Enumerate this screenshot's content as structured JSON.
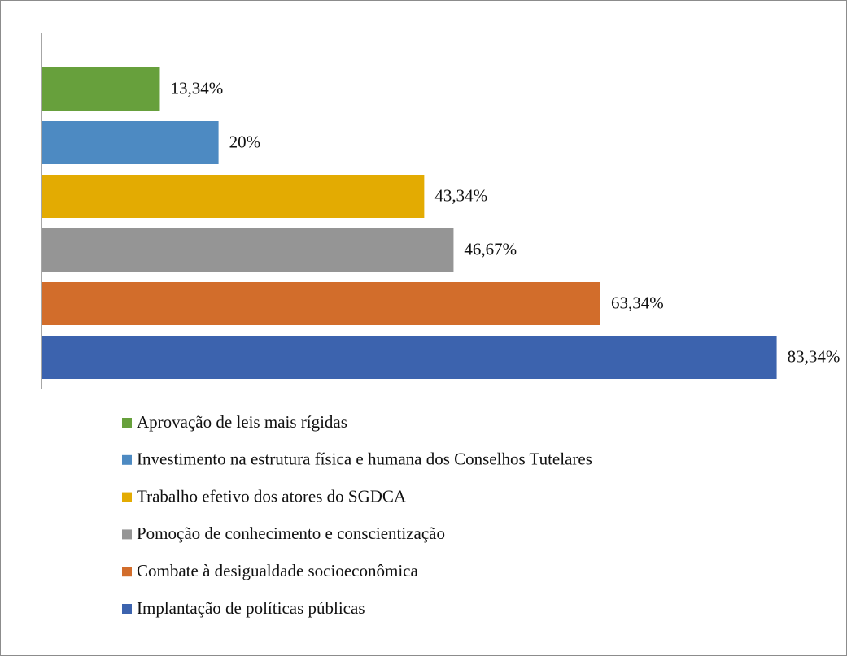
{
  "chart_data": {
    "type": "bar",
    "orientation": "horizontal",
    "categories": [
      "Aprovação de leis mais rígidas",
      "Investimento na estrutura física e humana dos Conselhos Tutelares",
      "Trabalho efetivo dos atores do SGDCA",
      "Pomoção de conhecimento e conscientização",
      "Combate à desigualdade socioeconômica",
      "Implantação de políticas públicas"
    ],
    "values": [
      13.34,
      20,
      43.34,
      46.67,
      63.34,
      83.34
    ],
    "value_labels": [
      "13,34%",
      "20%",
      "43,34%",
      "46,67%",
      "63,34%",
      "83,34%"
    ],
    "colors": [
      "#67a03c",
      "#4d8ac2",
      "#e3ab02",
      "#959595",
      "#d26d2b",
      "#3c63ae"
    ],
    "legend": "bottom"
  }
}
